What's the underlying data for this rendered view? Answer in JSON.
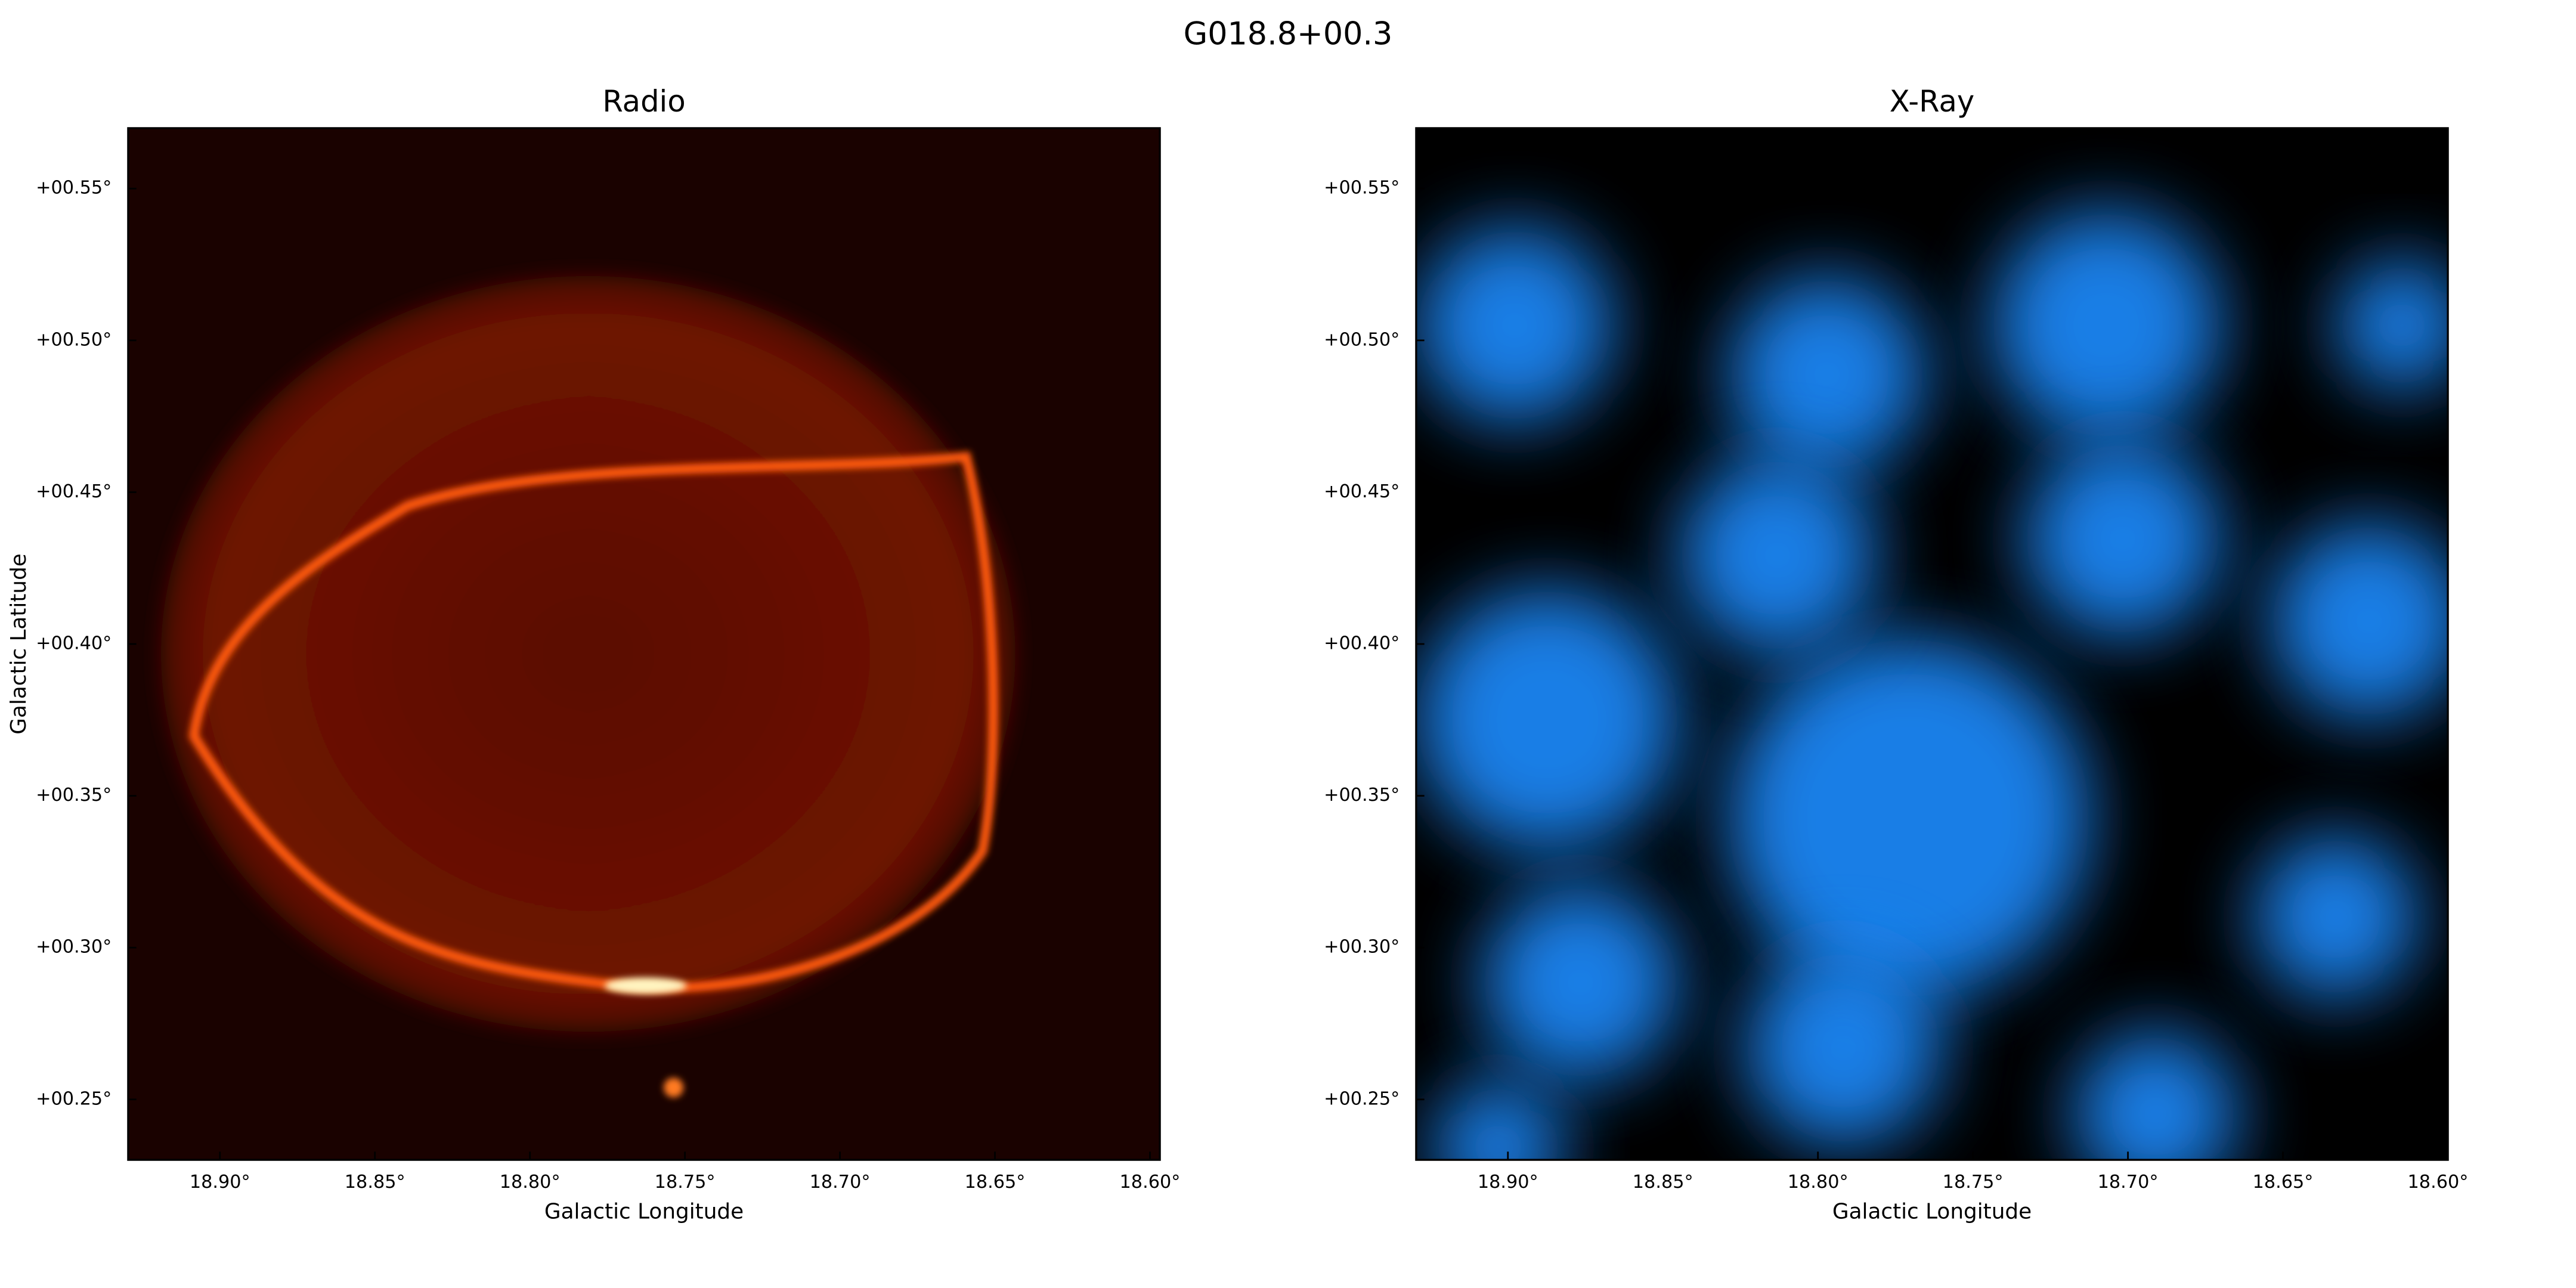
{
  "title": "G018.8+00.3",
  "chart_data": [
    {
      "type": "image",
      "title": "Radio",
      "colormap": "hot",
      "xlabel": "Galactic Longitude",
      "ylabel": "Galactic Latitude",
      "xlim": [
        18.9296,
        18.5968
      ],
      "ylim": [
        0.2301,
        0.5699
      ],
      "xticks": [
        {
          "value": 18.9,
          "label": "18.90°"
        },
        {
          "value": 18.85,
          "label": "18.85°"
        },
        {
          "value": 18.8,
          "label": "18.80°"
        },
        {
          "value": 18.75,
          "label": "18.75°"
        },
        {
          "value": 18.7,
          "label": "18.70°"
        },
        {
          "value": 18.65,
          "label": "18.65°"
        },
        {
          "value": 18.6,
          "label": "18.60°"
        }
      ],
      "yticks": [
        {
          "value": 0.55,
          "label": "+00.55°"
        },
        {
          "value": 0.5,
          "label": "+00.50°"
        },
        {
          "value": 0.45,
          "label": "+00.45°"
        },
        {
          "value": 0.4,
          "label": "+00.40°"
        },
        {
          "value": 0.35,
          "label": "+00.35°"
        },
        {
          "value": 0.3,
          "label": "+00.30°"
        },
        {
          "value": 0.25,
          "label": "+00.25°"
        }
      ]
    },
    {
      "type": "image",
      "title": "X-Ray",
      "colormap": "blue",
      "xlabel": "Galactic Longitude",
      "xlim": [
        18.9296,
        18.5968
      ],
      "ylim": [
        0.2301,
        0.5699
      ],
      "xticks": [
        {
          "value": 18.9,
          "label": "18.90°"
        },
        {
          "value": 18.85,
          "label": "18.85°"
        },
        {
          "value": 18.8,
          "label": "18.80°"
        },
        {
          "value": 18.75,
          "label": "18.75°"
        },
        {
          "value": 18.7,
          "label": "18.70°"
        },
        {
          "value": 18.65,
          "label": "18.65°"
        },
        {
          "value": 18.6,
          "label": "18.60°"
        }
      ],
      "yticks": [
        {
          "value": 0.55,
          "label": "+00.55°"
        },
        {
          "value": 0.5,
          "label": "+00.50°"
        },
        {
          "value": 0.45,
          "label": "+00.45°"
        },
        {
          "value": 0.4,
          "label": "+00.40°"
        },
        {
          "value": 0.35,
          "label": "+00.35°"
        },
        {
          "value": 0.3,
          "label": "+00.30°"
        },
        {
          "value": 0.25,
          "label": "+00.25°"
        }
      ]
    }
  ]
}
